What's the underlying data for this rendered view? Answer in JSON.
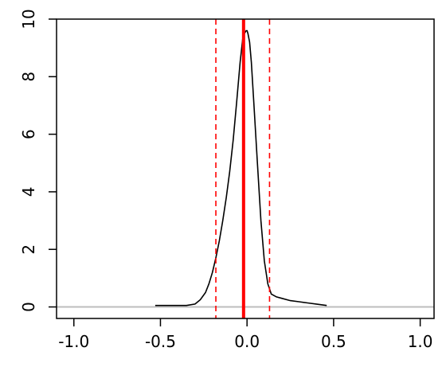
{
  "chart_data": {
    "type": "line",
    "title": "",
    "xlabel": "",
    "ylabel": "",
    "xlim": [
      -1.1,
      1.08
    ],
    "ylim": [
      -0.4,
      10.0
    ],
    "x_ticks": [
      -1.0,
      -0.5,
      0.0,
      0.5,
      1.0
    ],
    "x_tick_labels": [
      "-1.0",
      "-0.5",
      "0.0",
      "0.5",
      "1.0"
    ],
    "y_ticks": [
      0,
      2,
      4,
      6,
      8,
      10
    ],
    "y_tick_labels": [
      "0",
      "2",
      "4",
      "6",
      "8",
      "10"
    ],
    "grid": false,
    "legend": "none",
    "series": [
      {
        "x": [
          -0.53,
          -0.45,
          -0.35,
          -0.3,
          -0.27,
          -0.24,
          -0.22,
          -0.2,
          -0.18,
          -0.16,
          -0.14,
          -0.12,
          -0.1,
          -0.08,
          -0.06,
          -0.04,
          -0.025,
          -0.015,
          -0.005,
          0.0,
          0.005,
          0.015,
          0.025,
          0.04,
          0.06,
          0.08,
          0.1,
          0.12,
          0.14,
          0.17,
          0.2,
          0.25,
          0.3,
          0.35,
          0.4,
          0.46
        ],
        "y": [
          0.05,
          0.05,
          0.05,
          0.1,
          0.25,
          0.5,
          0.8,
          1.2,
          1.7,
          2.3,
          3.0,
          3.8,
          4.7,
          5.8,
          7.1,
          8.5,
          9.3,
          9.5,
          9.6,
          9.6,
          9.5,
          9.2,
          8.5,
          7.0,
          5.0,
          3.0,
          1.6,
          0.8,
          0.45,
          0.35,
          0.3,
          0.22,
          0.18,
          0.14,
          0.1,
          0.05
        ],
        "color": "#000000"
      }
    ],
    "reference_lines": [
      {
        "x": -0.02,
        "style": "solid",
        "color": "#ff0000"
      },
      {
        "x": -0.18,
        "style": "dashed",
        "color": "#ff0000"
      },
      {
        "x": 0.13,
        "style": "dashed",
        "color": "#ff0000"
      }
    ],
    "baseline": {
      "y": 0,
      "color": "#bebebe"
    }
  }
}
